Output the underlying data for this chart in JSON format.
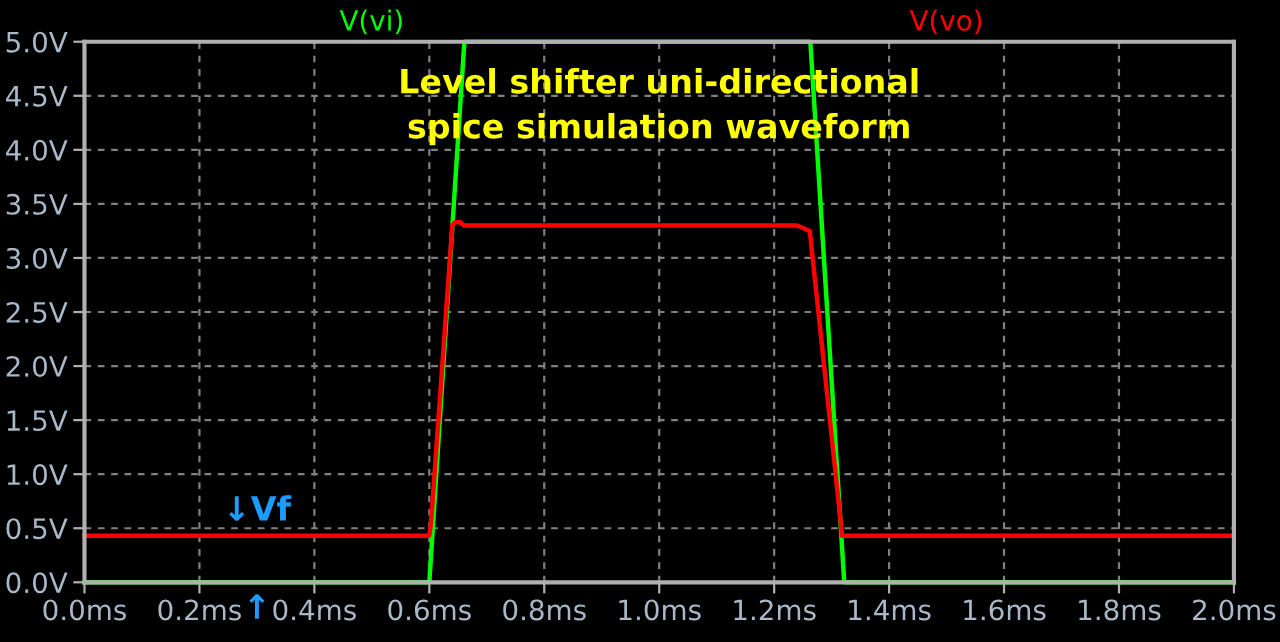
{
  "chart_data": {
    "type": "line",
    "title": "Level shifter uni-directional\nspice simulation waveform",
    "x": [
      0,
      0.6,
      0.661,
      1.263,
      1.322,
      2.0
    ],
    "series": [
      {
        "name": "V(vi)",
        "color": "#00ff00",
        "values": [
          0,
          0,
          5,
          5,
          0,
          0
        ]
      },
      {
        "name": "V(vo)",
        "color": "#ff0000",
        "x": [
          0,
          0.6,
          0.603,
          0.64,
          0.645,
          0.655,
          0.66,
          1.24,
          1.262,
          1.316,
          1.318,
          2.0
        ],
        "values": [
          0.43,
          0.43,
          0.55,
          3.3,
          3.33,
          3.33,
          3.3,
          3.3,
          3.25,
          0.55,
          0.43,
          0.43
        ]
      }
    ],
    "annotations": [
      {
        "text": "↓Vf",
        "x": 0.3,
        "y": 0.43
      },
      {
        "text": "↑",
        "x": 0.3,
        "y": 0
      }
    ],
    "xlim": [
      0,
      2.0
    ],
    "ylim": [
      0,
      5.0
    ],
    "xticks": [
      {
        "value": 0,
        "label": "0.0ms"
      },
      {
        "value": 0.2,
        "label": "0.2ms"
      },
      {
        "value": 0.4,
        "label": "0.4ms"
      },
      {
        "value": 0.6,
        "label": "0.6ms"
      },
      {
        "value": 0.8,
        "label": "0.8ms"
      },
      {
        "value": 1.0,
        "label": "1.0ms"
      },
      {
        "value": 1.2,
        "label": "1.2ms"
      },
      {
        "value": 1.4,
        "label": "1.4ms"
      },
      {
        "value": 1.6,
        "label": "1.6ms"
      },
      {
        "value": 1.8,
        "label": "1.8ms"
      },
      {
        "value": 2.0,
        "label": "2.0ms"
      }
    ],
    "yticks": [
      {
        "value": 0,
        "label": "0.0V"
      },
      {
        "value": 0.5,
        "label": "0.5V"
      },
      {
        "value": 1.0,
        "label": "1.0V"
      },
      {
        "value": 1.5,
        "label": "1.5V"
      },
      {
        "value": 2.0,
        "label": "2.0V"
      },
      {
        "value": 2.5,
        "label": "2.5V"
      },
      {
        "value": 3.0,
        "label": "3.0V"
      },
      {
        "value": 3.5,
        "label": "3.5V"
      },
      {
        "value": 4.0,
        "label": "4.0V"
      },
      {
        "value": 4.5,
        "label": "4.5V"
      },
      {
        "value": 5.0,
        "label": "5.0V"
      }
    ],
    "grid": true,
    "legend": "top",
    "line_style": "solid",
    "marker": "none"
  }
}
